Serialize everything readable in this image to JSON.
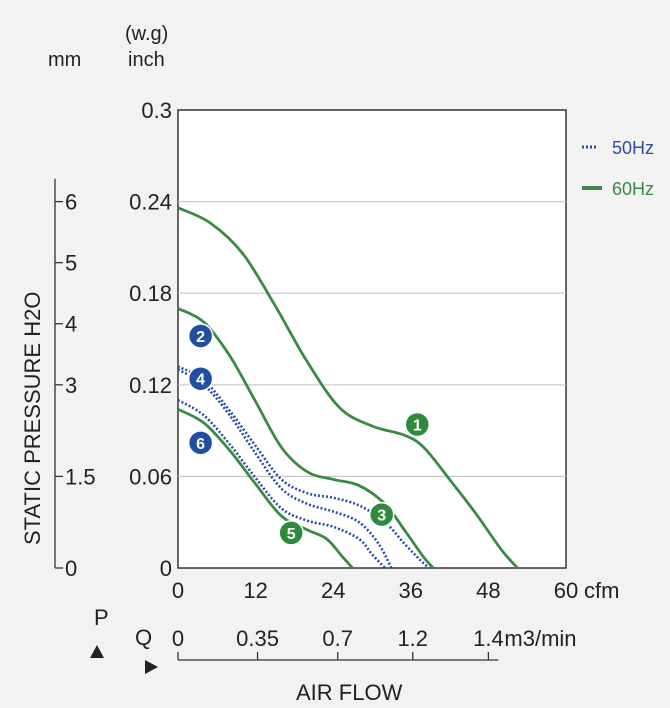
{
  "chart_data": {
    "type": "line",
    "ylabel": "STATIC PRESSURE H2O",
    "xlabel": "AIR FLOW",
    "y_units": [
      "mm",
      "(w.g)",
      "inch"
    ],
    "y_inch_ticks": [
      "0",
      "0.06",
      "0.12",
      "0.18",
      "0.24",
      "0.3"
    ],
    "y_inch_tick_values": [
      0,
      0.06,
      0.12,
      0.18,
      0.24,
      0.3
    ],
    "y_mm_ticks": [
      "0",
      "1.5",
      "3",
      "4",
      "5",
      "6"
    ],
    "y_mm_tick_values": [
      0,
      0.06,
      0.12,
      0.16,
      0.2,
      0.24
    ],
    "ylim": [
      0,
      0.3
    ],
    "xlim": [
      0,
      60
    ],
    "x_cfm_ticks": [
      "0",
      "12",
      "24",
      "36",
      "48",
      "60"
    ],
    "x_cfm_tick_values": [
      0,
      12,
      24,
      36,
      48,
      60
    ],
    "x_cfm_unit": "cfm",
    "x_m3_ticks": [
      "0",
      "0.35",
      "0.7",
      "1.2",
      "1.4"
    ],
    "x_m3_tick_positions_cfm": [
      0,
      12.3,
      24.7,
      36.3,
      48
    ],
    "x_m3_unit": "m3/min",
    "p_label": "P",
    "q_label": "Q",
    "legend": {
      "placement": "top-right",
      "entries": [
        {
          "label": "50Hz",
          "style": "dotted",
          "color": "#2a4fa0"
        },
        {
          "label": "60Hz",
          "style": "solid",
          "color": "#3a8a45"
        }
      ]
    },
    "grid": true,
    "series": [
      {
        "name": "1",
        "hz": "60Hz",
        "label_color": "#2e8b3e",
        "label_at": [
          37,
          0.094
        ],
        "x": [
          0,
          5,
          10,
          15,
          20,
          25,
          30,
          35,
          38,
          42,
          46,
          50,
          52.5
        ],
        "y": [
          0.236,
          0.226,
          0.206,
          0.172,
          0.135,
          0.105,
          0.093,
          0.087,
          0.079,
          0.058,
          0.036,
          0.012,
          0
        ]
      },
      {
        "name": "2",
        "hz": "60Hz",
        "label_color": "#1f4f9e",
        "label_at": [
          3.5,
          0.152
        ],
        "x": [
          0,
          4,
          8,
          12,
          16,
          20,
          24,
          28,
          32,
          35,
          38,
          39.5
        ],
        "y": [
          0.17,
          0.161,
          0.139,
          0.109,
          0.079,
          0.063,
          0.058,
          0.054,
          0.042,
          0.025,
          0.007,
          0
        ]
      },
      {
        "name": "3",
        "hz": "50Hz",
        "label_color": "#2e8b3e",
        "label_at": [
          31.5,
          0.035
        ],
        "x": [
          0,
          4,
          8,
          12,
          16,
          20,
          24,
          28,
          32,
          35,
          37.5,
          38.8
        ],
        "y": [
          0.132,
          0.123,
          0.103,
          0.08,
          0.058,
          0.049,
          0.046,
          0.041,
          0.03,
          0.016,
          0.005,
          0
        ]
      },
      {
        "name": "4",
        "hz": "50Hz",
        "label_color": "#1f4f9e",
        "label_at": [
          3.5,
          0.124
        ],
        "x": [
          0,
          4,
          8,
          12,
          16,
          20,
          24,
          28,
          31,
          33
        ],
        "y": [
          0.13,
          0.12,
          0.1,
          0.075,
          0.052,
          0.042,
          0.037,
          0.03,
          0.016,
          0
        ]
      },
      {
        "name": "5",
        "hz": "60Hz",
        "label_color": "#2e8b3e",
        "label_at": [
          17.5,
          0.023
        ],
        "x": [
          0,
          4,
          8,
          12,
          16,
          20,
          23,
          25.5,
          27
        ],
        "y": [
          0.104,
          0.095,
          0.077,
          0.055,
          0.034,
          0.025,
          0.019,
          0.007,
          0
        ]
      },
      {
        "name": "6",
        "hz": "50Hz",
        "label_color": "#1f4f9e",
        "label_at": [
          3.5,
          0.082
        ],
        "x": [
          0,
          4,
          8,
          12,
          16,
          20,
          24,
          28,
          30,
          32
        ],
        "y": [
          0.11,
          0.1,
          0.081,
          0.059,
          0.039,
          0.031,
          0.027,
          0.019,
          0.009,
          0
        ]
      }
    ]
  }
}
